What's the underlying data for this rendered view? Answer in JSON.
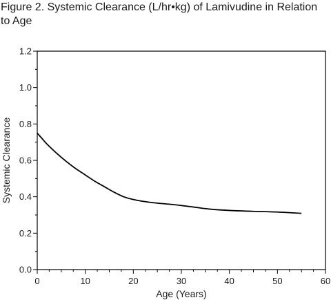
{
  "figure": {
    "title": "Figure 2. Systemic Clearance (L/hr•kg) of Lamivudine in Relation to Age"
  },
  "chart_data": {
    "type": "line",
    "title": "Figure 2. Systemic Clearance (L/hr•kg) of Lamivudine in Relation to Age",
    "xlabel": "Age (Years)",
    "ylabel": "Systemic Clearance",
    "xlim": [
      0,
      60
    ],
    "ylim": [
      0.0,
      1.2
    ],
    "x_ticks": [
      0,
      10,
      20,
      30,
      40,
      50,
      60
    ],
    "y_ticks": [
      0.0,
      0.2,
      0.4,
      0.6,
      0.8,
      1.0,
      1.2
    ],
    "x_tick_labels": [
      "0",
      "10",
      "20",
      "30",
      "40",
      "50",
      "60"
    ],
    "y_tick_labels": [
      "0.0",
      "0.2",
      "0.4",
      "0.6",
      "0.8",
      "1.0",
      "1.2"
    ],
    "grid": false,
    "series": [
      {
        "color": "#000000",
        "x": [
          0,
          1,
          2,
          4,
          6,
          8,
          10,
          12,
          14,
          16,
          18,
          20,
          22,
          25,
          28,
          30,
          33,
          36,
          40,
          45,
          50,
          55
        ],
        "y": [
          0.75,
          0.72,
          0.69,
          0.64,
          0.595,
          0.555,
          0.52,
          0.485,
          0.455,
          0.425,
          0.4,
          0.385,
          0.375,
          0.365,
          0.358,
          0.352,
          0.342,
          0.332,
          0.325,
          0.32,
          0.316,
          0.309
        ]
      }
    ]
  }
}
